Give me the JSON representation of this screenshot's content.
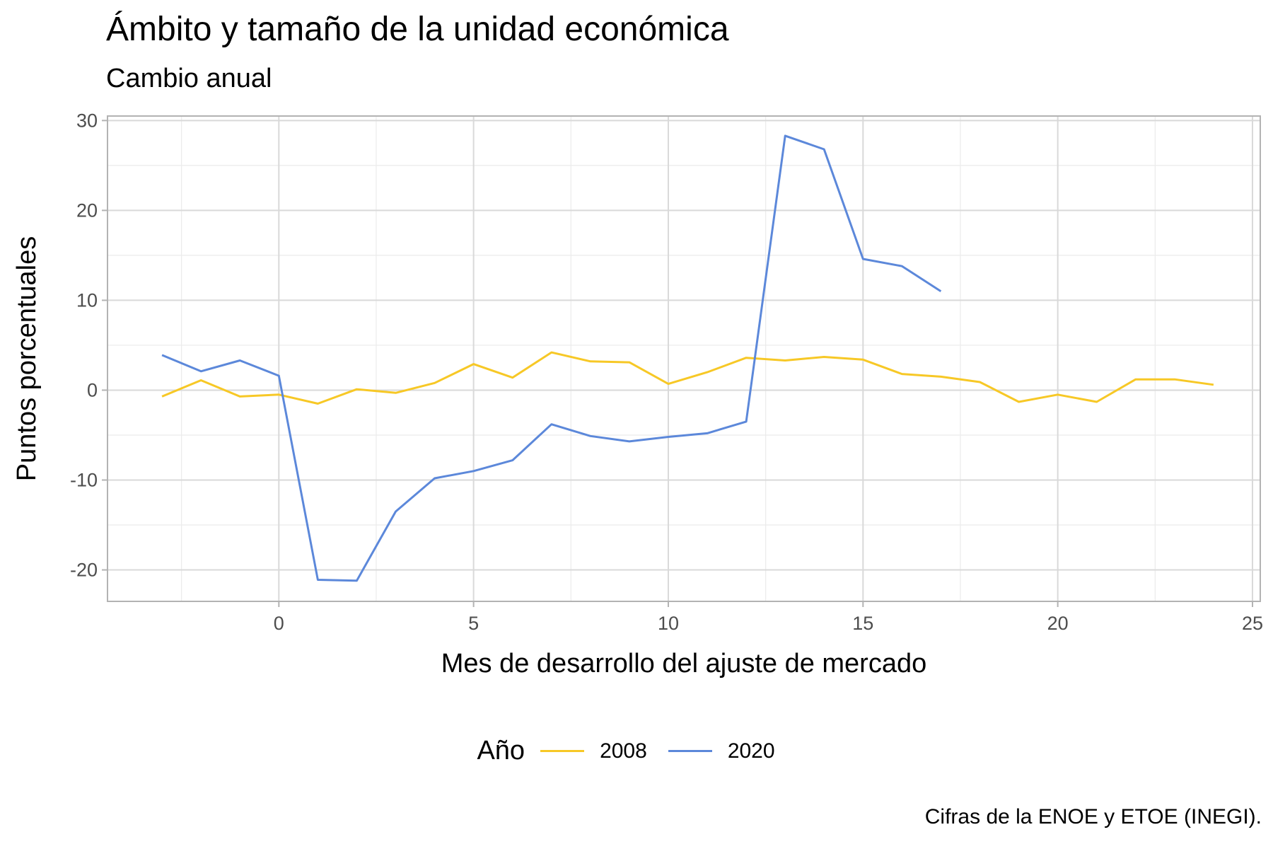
{
  "title": "Ámbito y tamaño de la unidad económica",
  "subtitle": "Cambio anual",
  "caption": "Cifras de la ENOE y ETOE (INEGI).",
  "legend": {
    "title": "Año"
  },
  "chart_data": {
    "type": "line",
    "xlabel": "Mes de desarrollo del ajuste de mercado",
    "ylabel": "Puntos porcentuales",
    "xlim": [
      -4.4,
      25.2
    ],
    "ylim": [
      -23.5,
      30.5
    ],
    "xticks": [
      0,
      5,
      10,
      15,
      20,
      25
    ],
    "xtick_labels": [
      "0",
      "5",
      "10",
      "15",
      "20",
      "25"
    ],
    "yticks": [
      -20,
      -10,
      0,
      10,
      20,
      30
    ],
    "ytick_labels": [
      "-20",
      "-10",
      "0",
      "10",
      "20",
      "30"
    ],
    "grid": true,
    "legend_position": "bottom",
    "series": [
      {
        "name": "2008",
        "color": "#f7c826",
        "x": [
          -3,
          -2,
          -1,
          0,
          1,
          2,
          3,
          4,
          5,
          6,
          7,
          8,
          9,
          10,
          11,
          12,
          13,
          14,
          15,
          16,
          17,
          18,
          19,
          20,
          21,
          22,
          23,
          24
        ],
        "y": [
          -0.7,
          1.1,
          -0.7,
          -0.5,
          -1.5,
          0.1,
          -0.3,
          0.8,
          2.9,
          1.4,
          4.2,
          3.2,
          3.1,
          0.7,
          2.0,
          3.6,
          3.3,
          3.7,
          3.4,
          1.8,
          1.5,
          0.9,
          -1.3,
          -0.5,
          -1.3,
          1.2,
          1.2,
          0.6
        ]
      },
      {
        "name": "2020",
        "color": "#5c88da",
        "x": [
          -3,
          -2,
          -1,
          0,
          1,
          2,
          3,
          4,
          5,
          6,
          7,
          8,
          9,
          10,
          11,
          12,
          13,
          14,
          15,
          16,
          17
        ],
        "y": [
          3.9,
          2.1,
          3.3,
          1.6,
          -21.1,
          -21.2,
          -13.5,
          -9.8,
          -9.0,
          -7.8,
          -3.8,
          -5.1,
          -5.7,
          -5.2,
          -4.8,
          -3.5,
          28.3,
          26.8,
          14.6,
          13.8,
          11.0
        ]
      }
    ]
  }
}
